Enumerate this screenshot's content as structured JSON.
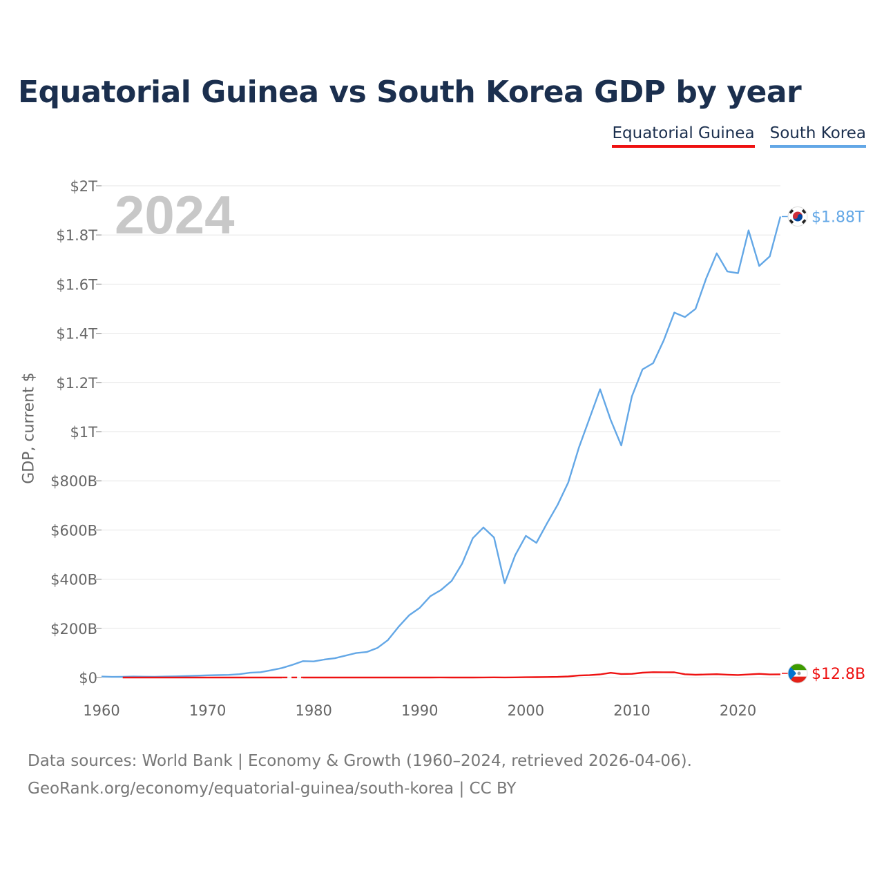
{
  "title": "Equatorial Guinea vs South Korea GDP by year",
  "legend": [
    {
      "name": "Equatorial Guinea",
      "color": "#ee1111"
    },
    {
      "name": "South Korea",
      "color": "#63a7e6"
    }
  ],
  "ylabel": "GDP, current $",
  "year_label": "2024",
  "source": {
    "line1": "Data sources: World Bank | Economy & Growth (1960–2024, retrieved 2026-04-06).",
    "line2": "GeoRank.org/economy/equatorial-guinea/south-korea | CC BY"
  },
  "chart_data": {
    "type": "line",
    "title": "Equatorial Guinea vs South Korea GDP by year",
    "ylabel": "GDP, current $",
    "xlabel": "",
    "xlim": [
      1960,
      2024
    ],
    "ylim": [
      0,
      2000
    ],
    "units": "billions of US$",
    "x_ticks": [
      1960,
      1970,
      1980,
      1990,
      2000,
      2010,
      2020
    ],
    "x_tick_labels": [
      "1960",
      "1970",
      "1980",
      "1990",
      "2000",
      "2010",
      "2020"
    ],
    "y_ticks": [
      0,
      200,
      400,
      600,
      800,
      1000,
      1200,
      1400,
      1600,
      1800,
      2000
    ],
    "y_tick_labels": [
      "$0",
      "$200B",
      "$400B",
      "$600B",
      "$800B",
      "$1T",
      "$1.2T",
      "$1.4T",
      "$1.6T",
      "$1.8T",
      "$2T"
    ],
    "series": [
      {
        "name": "South Korea",
        "color": "#63a7e6",
        "end_label": "$1.88T",
        "flag": "south-korea-flag-icon",
        "x": [
          1960,
          1961,
          1962,
          1963,
          1964,
          1965,
          1966,
          1967,
          1968,
          1969,
          1970,
          1971,
          1972,
          1973,
          1974,
          1975,
          1976,
          1977,
          1978,
          1979,
          1980,
          1981,
          1982,
          1983,
          1984,
          1985,
          1986,
          1987,
          1988,
          1989,
          1990,
          1991,
          1992,
          1993,
          1994,
          1995,
          1996,
          1997,
          1998,
          1999,
          2000,
          2001,
          2002,
          2003,
          2004,
          2005,
          2006,
          2007,
          2008,
          2009,
          2010,
          2011,
          2012,
          2013,
          2014,
          2015,
          2016,
          2017,
          2018,
          2019,
          2020,
          2021,
          2022,
          2023,
          2024
        ],
        "values": [
          4,
          2.4,
          2.8,
          3.9,
          3.5,
          3.1,
          3.9,
          4.9,
          6.1,
          7.7,
          9,
          9.9,
          10.8,
          13.4,
          19.4,
          21.7,
          29.8,
          38.4,
          51.7,
          66.7,
          65.4,
          72.9,
          78.3,
          89,
          99.4,
          103.7,
          119.9,
          152.3,
          206.3,
          253.1,
          283.4,
          330.6,
          355.9,
          392.6,
          463.6,
          566.6,
          610.2,
          569.8,
          383.3,
          497.5,
          576.2,
          547.7,
          627.2,
          702.7,
          793.2,
          934.9,
          1053.2,
          1172.6,
          1047.3,
          943.9,
          1143.9,
          1253.2,
          1278.4,
          1370.8,
          1484.3,
          1466,
          1499.4,
          1623.1,
          1725.4,
          1651.4,
          1644.3,
          1818.4,
          1673.9,
          1712.8,
          1875
        ]
      },
      {
        "name": "Equatorial Guinea",
        "color": "#ee1111",
        "end_label": "$12.8B",
        "flag": "equatorial-guinea-flag-icon",
        "gap_from": 1977,
        "gap_to": 1979,
        "x": [
          1962,
          1963,
          1964,
          1965,
          1966,
          1967,
          1968,
          1969,
          1970,
          1971,
          1972,
          1973,
          1974,
          1975,
          1976,
          1977,
          1979,
          1980,
          1981,
          1982,
          1983,
          1984,
          1985,
          1986,
          1987,
          1988,
          1989,
          1990,
          1991,
          1992,
          1993,
          1994,
          1995,
          1996,
          1997,
          1998,
          1999,
          2000,
          2001,
          2002,
          2003,
          2004,
          2005,
          2006,
          2007,
          2008,
          2009,
          2010,
          2011,
          2012,
          2013,
          2014,
          2015,
          2016,
          2017,
          2018,
          2019,
          2020,
          2021,
          2022,
          2023,
          2024
        ],
        "values": [
          0.01,
          0.01,
          0.02,
          0.02,
          0.02,
          0.03,
          0.03,
          0.03,
          0.06,
          0.06,
          0.06,
          0.07,
          0.08,
          0.1,
          0.1,
          0.1,
          0.1,
          0.12,
          0.12,
          0.13,
          0.13,
          0.09,
          0.09,
          0.1,
          0.1,
          0.1,
          0.1,
          0.13,
          0.13,
          0.16,
          0.14,
          0.12,
          0.14,
          0.23,
          0.44,
          0.37,
          0.62,
          1.05,
          1.46,
          2.07,
          2.5,
          4.4,
          8.2,
          9.6,
          12.6,
          19.1,
          14.2,
          14.9,
          19.8,
          21.6,
          21.4,
          21.1,
          13.2,
          11.1,
          12.3,
          13.4,
          11.4,
          10.1,
          12.3,
          14.9,
          12.4,
          12.8
        ]
      }
    ]
  }
}
